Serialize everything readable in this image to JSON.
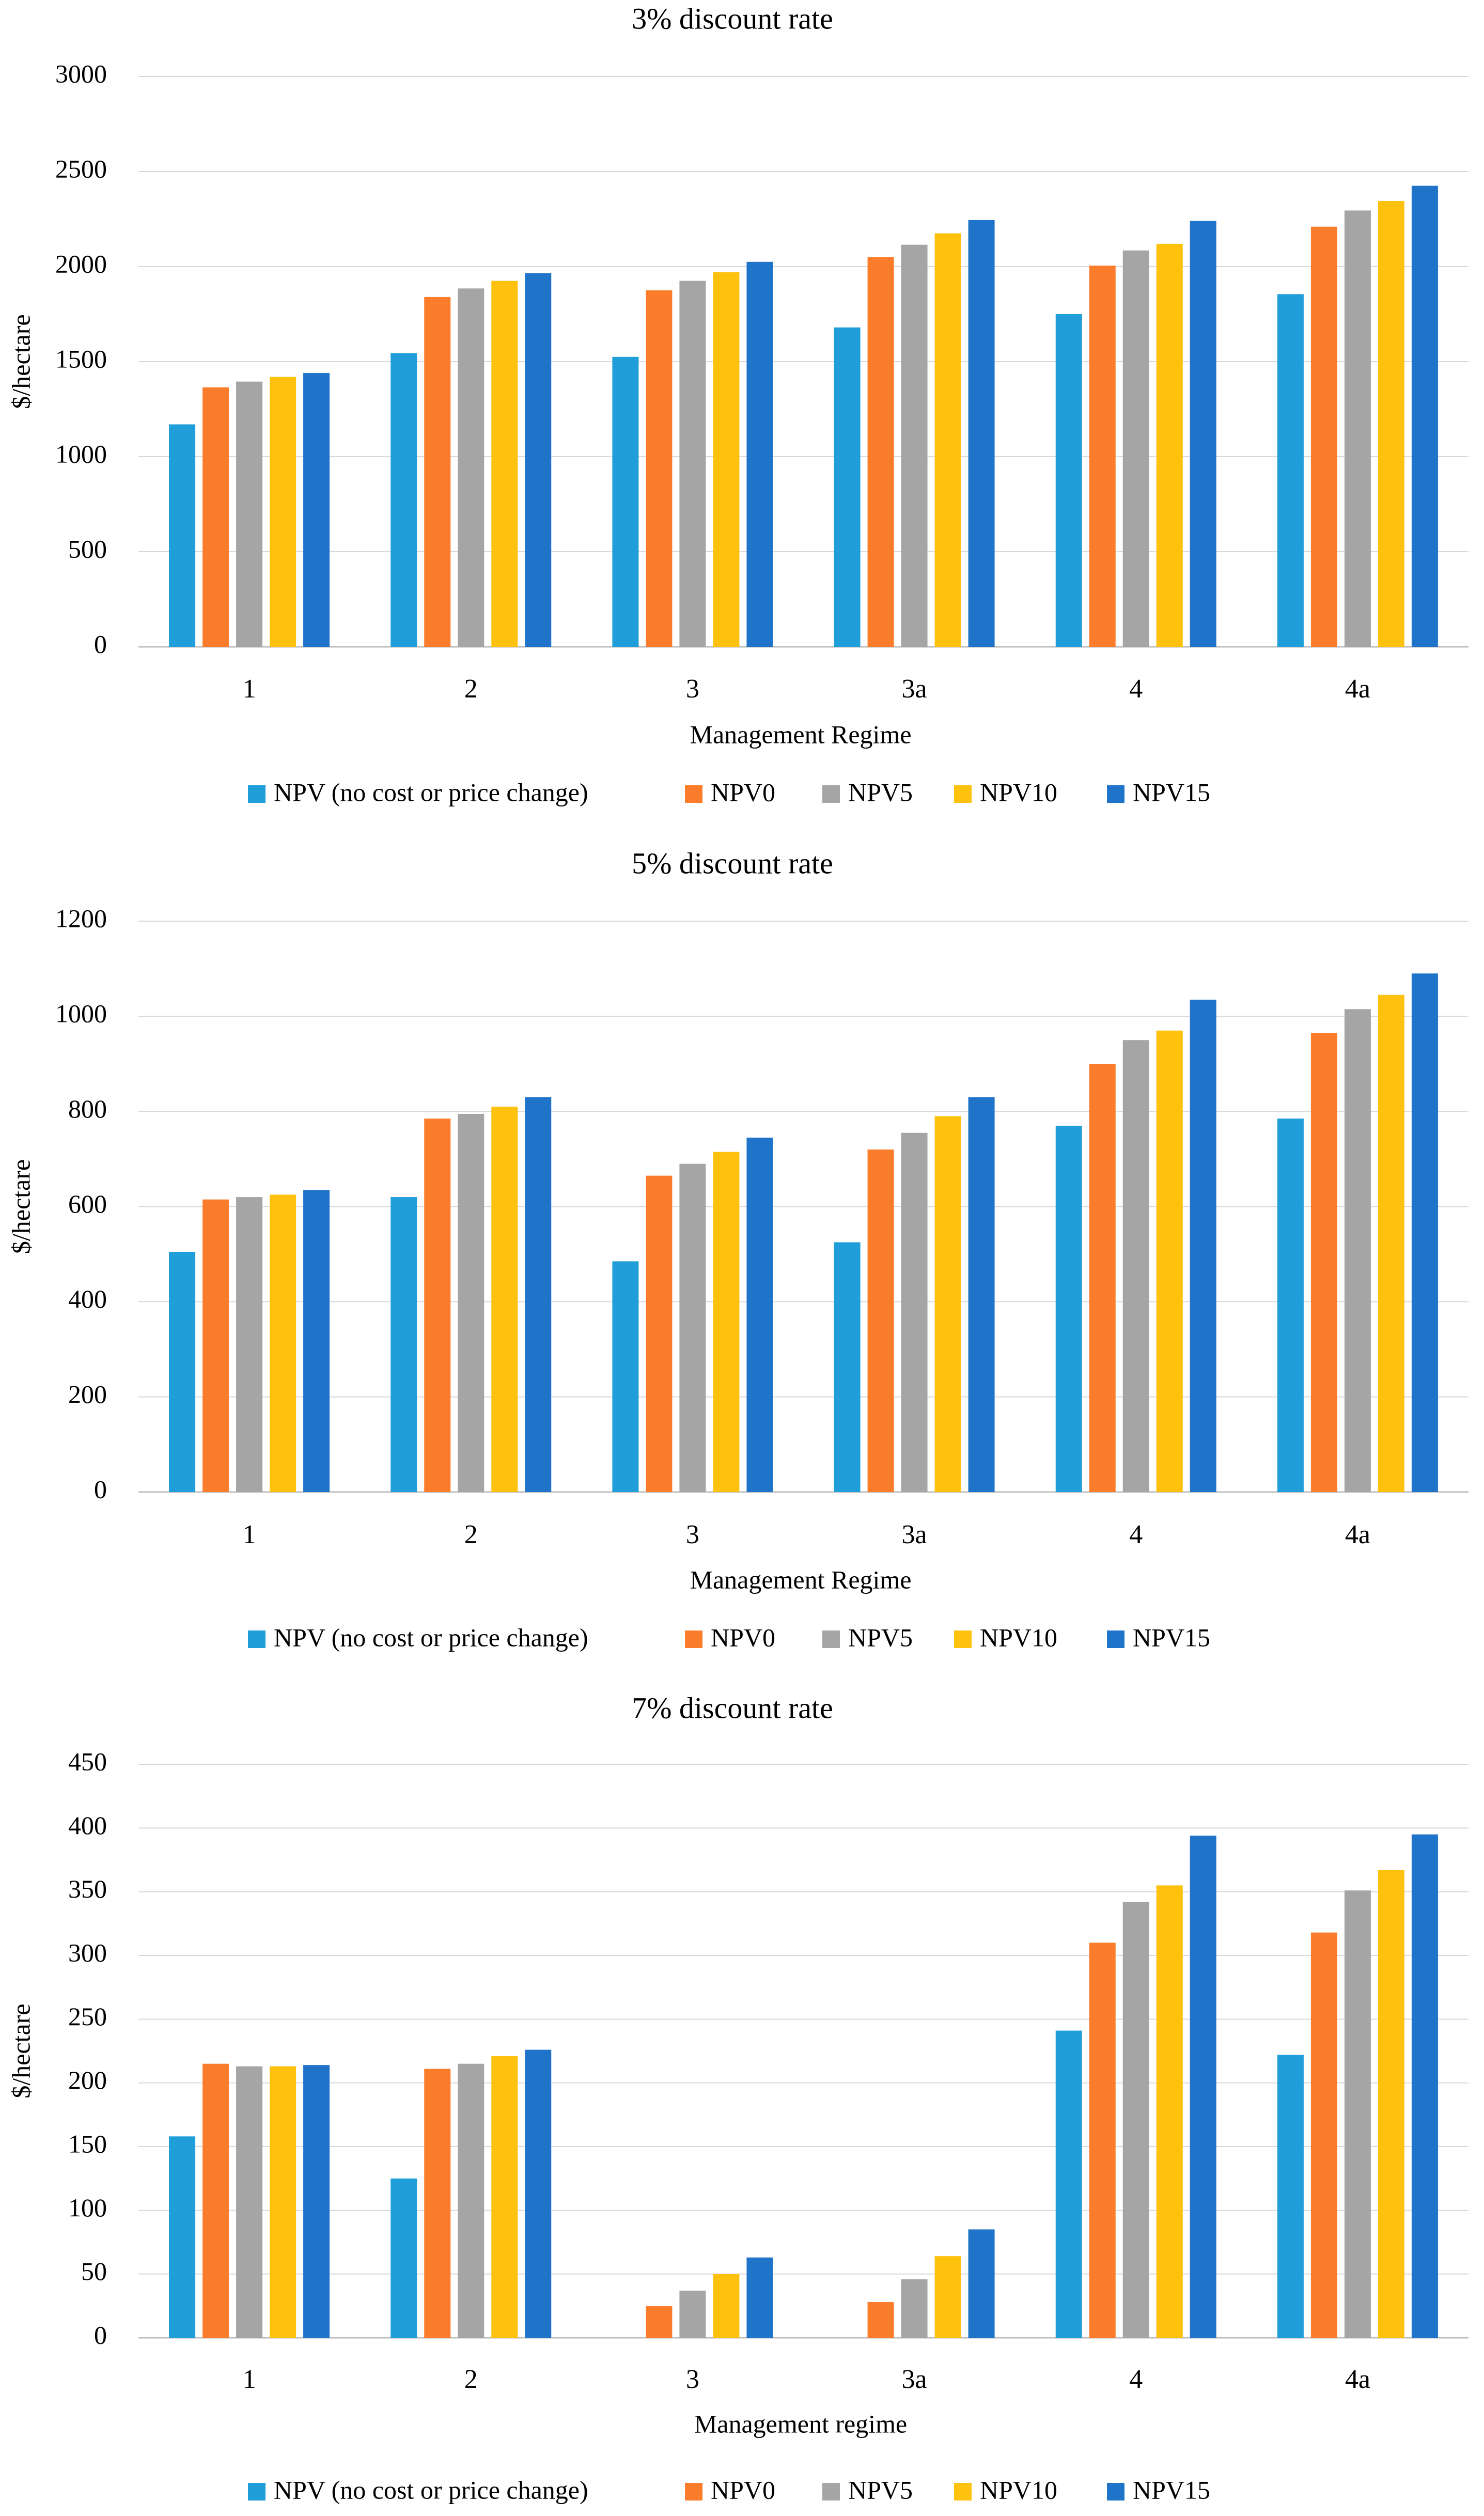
{
  "colors": {
    "NPV (no cost or price change)": "#1f9ed9",
    "NPV0": "#fb7d2b",
    "NPV5": "#a5a5a5",
    "NPV10": "#fec10d",
    "NPV15": "#1f74c9",
    "grid": "#d9d9d9",
    "axis": "#bfbfbf",
    "text": "#000000"
  },
  "chart_data": [
    {
      "type": "bar",
      "title": "3% discount rate",
      "xlabel": "Management Regime",
      "ylabel": "$/hectare",
      "ylim": [
        0,
        3000
      ],
      "yticks": [
        0,
        500,
        1000,
        1500,
        2000,
        2500,
        3000
      ],
      "grid": true,
      "legend_position": "bottom",
      "categories": [
        "1",
        "2",
        "3",
        "3a",
        "4",
        "4a"
      ],
      "series": [
        {
          "name": "NPV (no cost or price change)",
          "values": [
            1170,
            1545,
            1525,
            1680,
            1750,
            1855
          ]
        },
        {
          "name": "NPV0",
          "values": [
            1365,
            1840,
            1875,
            2050,
            2005,
            2210
          ]
        },
        {
          "name": "NPV5",
          "values": [
            1395,
            1885,
            1925,
            2115,
            2085,
            2295
          ]
        },
        {
          "name": "NPV10",
          "values": [
            1420,
            1925,
            1970,
            2175,
            2120,
            2345
          ]
        },
        {
          "name": "NPV15",
          "values": [
            1440,
            1965,
            2025,
            2245,
            2240,
            2425
          ]
        }
      ]
    },
    {
      "type": "bar",
      "title": "5% discount rate",
      "xlabel": "Management Regime",
      "ylabel": "$/hectare",
      "ylim": [
        0,
        1200
      ],
      "yticks": [
        0,
        200,
        400,
        600,
        800,
        1000,
        1200
      ],
      "grid": true,
      "legend_position": "bottom",
      "categories": [
        "1",
        "2",
        "3",
        "3a",
        "4",
        "4a"
      ],
      "series": [
        {
          "name": "NPV (no cost or price change)",
          "values": [
            505,
            620,
            485,
            525,
            770,
            785
          ]
        },
        {
          "name": "NPV0",
          "values": [
            615,
            785,
            665,
            720,
            900,
            965
          ]
        },
        {
          "name": "NPV5",
          "values": [
            620,
            795,
            690,
            755,
            950,
            1015
          ]
        },
        {
          "name": "NPV10",
          "values": [
            625,
            810,
            715,
            790,
            970,
            1045
          ]
        },
        {
          "name": "NPV15",
          "values": [
            635,
            830,
            745,
            830,
            1035,
            1090
          ]
        }
      ]
    },
    {
      "type": "bar",
      "title": "7% discount rate",
      "xlabel": "Management regime",
      "ylabel": "$/hectare",
      "ylim": [
        0,
        450
      ],
      "yticks": [
        0,
        50,
        100,
        150,
        200,
        250,
        300,
        350,
        400,
        450
      ],
      "grid": true,
      "legend_position": "bottom",
      "categories": [
        "1",
        "2",
        "3",
        "3a",
        "4",
        "4a"
      ],
      "series": [
        {
          "name": "NPV (no cost or price change)",
          "values": [
            158,
            125,
            0,
            0,
            241,
            222
          ]
        },
        {
          "name": "NPV0",
          "values": [
            215,
            211,
            25,
            28,
            310,
            318
          ]
        },
        {
          "name": "NPV5",
          "values": [
            213,
            215,
            37,
            46,
            342,
            351
          ]
        },
        {
          "name": "NPV10",
          "values": [
            213,
            221,
            50,
            64,
            355,
            367
          ]
        },
        {
          "name": "NPV15",
          "values": [
            214,
            226,
            63,
            85,
            394,
            395
          ]
        }
      ]
    }
  ]
}
